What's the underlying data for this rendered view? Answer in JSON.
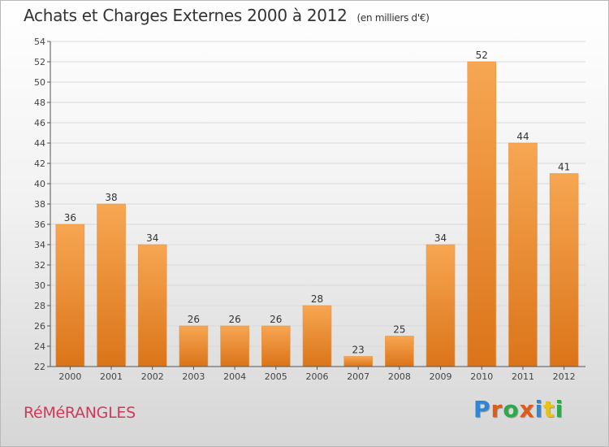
{
  "title": "Achats et Charges Externes 2000 à 2012",
  "unit": "(en milliers d'€)",
  "city": "RéMéRANGLES",
  "logo": {
    "text": "Proxiti",
    "colors": [
      "#2e86d6",
      "#e05a1c",
      "#2ea84a",
      "#e05a1c",
      "#2e86d6",
      "#e8c21a",
      "#2ea84a"
    ]
  },
  "colors": {
    "bar": "#ee8a2e",
    "bar_light": "#f7ad5e",
    "bar_dark": "#d8731c",
    "accent": "#d2385a"
  },
  "chart_data": {
    "type": "bar",
    "categories": [
      "2000",
      "2001",
      "2002",
      "2003",
      "2004",
      "2005",
      "2006",
      "2007",
      "2008",
      "2009",
      "2010",
      "2011",
      "2012"
    ],
    "values": [
      36,
      38,
      34,
      26,
      26,
      26,
      28,
      23,
      25,
      34,
      52,
      44,
      41
    ],
    "title": "Achats et Charges Externes 2000 à 2012",
    "xlabel": "",
    "ylabel": "",
    "ylim": [
      22,
      54
    ],
    "yticks": [
      22,
      24,
      26,
      28,
      30,
      32,
      34,
      36,
      38,
      40,
      42,
      44,
      46,
      48,
      50,
      52,
      54
    ],
    "grid": true,
    "legend": "none"
  }
}
